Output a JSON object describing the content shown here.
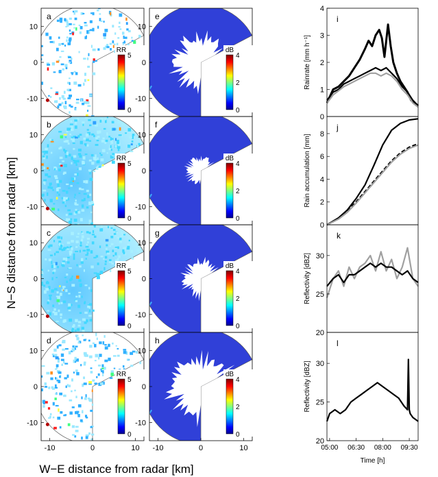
{
  "figure": {
    "shared_xlabel": "W−E distance from radar [km]",
    "shared_ylabel": "N−S distance from radar [km]",
    "map_ticks": [
      "-10",
      "0",
      "10"
    ]
  },
  "chart_data": [
    {
      "type": "heatmap",
      "panel": "a",
      "colorbar": {
        "title": "RR",
        "ticks": [
          "0",
          "5"
        ],
        "range": [
          0,
          5
        ]
      },
      "xlim": [
        -12,
        12
      ],
      "ylim": [
        -15,
        15
      ],
      "fill": "sparse"
    },
    {
      "type": "heatmap",
      "panel": "b",
      "colorbar": {
        "title": "RR",
        "ticks": [
          "0",
          "5"
        ],
        "range": [
          0,
          5
        ]
      },
      "xlim": [
        -12,
        12
      ],
      "ylim": [
        -15,
        15
      ],
      "fill": "full"
    },
    {
      "type": "heatmap",
      "panel": "c",
      "colorbar": {
        "title": "RR",
        "ticks": [
          "0",
          "5"
        ],
        "range": [
          0,
          5
        ]
      },
      "xlim": [
        -12,
        12
      ],
      "ylim": [
        -15,
        15
      ],
      "fill": "full"
    },
    {
      "type": "heatmap",
      "panel": "d",
      "colorbar": {
        "title": "RR",
        "ticks": [
          "0",
          "5"
        ],
        "range": [
          0,
          5
        ]
      },
      "xlim": [
        -12,
        12
      ],
      "ylim": [
        -15,
        15
      ],
      "fill": "sparse"
    },
    {
      "type": "heatmap",
      "panel": "e",
      "colorbar": {
        "title": "dB",
        "ticks": [
          "0",
          "2",
          "4"
        ],
        "range": [
          0,
          4
        ]
      },
      "xlim": [
        -12,
        12
      ],
      "ylim": [
        -15,
        15
      ],
      "blank_radius_km": 7
    },
    {
      "type": "heatmap",
      "panel": "f",
      "colorbar": {
        "title": "dB",
        "ticks": [
          "0",
          "2",
          "4"
        ],
        "range": [
          0,
          4
        ]
      },
      "xlim": [
        -12,
        12
      ],
      "ylim": [
        -15,
        15
      ],
      "blank_radius_km": 3.5
    },
    {
      "type": "heatmap",
      "panel": "g",
      "colorbar": {
        "title": "dB",
        "ticks": [
          "0",
          "2",
          "4"
        ],
        "range": [
          0,
          4
        ]
      },
      "xlim": [
        -12,
        12
      ],
      "ylim": [
        -15,
        15
      ],
      "blank_radius_km": 4.5
    },
    {
      "type": "heatmap",
      "panel": "h",
      "colorbar": {
        "title": "dB",
        "ticks": [
          "0",
          "2",
          "4"
        ],
        "range": [
          0,
          4
        ]
      },
      "xlim": [
        -12,
        12
      ],
      "ylim": [
        -15,
        15
      ],
      "blank_radius_km": 8
    },
    {
      "type": "line",
      "panel": "i",
      "ylabel": "Rainrate [mm h⁻¹]",
      "ylim": [
        0,
        4
      ],
      "yticks": [
        "0",
        "1",
        "2",
        "3",
        "4"
      ],
      "xlim": [
        4.85,
        10.0
      ],
      "series": [
        {
          "color": "#000000",
          "x": [
            4.85,
            5.2,
            5.5,
            5.8,
            6.1,
            6.4,
            6.7,
            7.0,
            7.2,
            7.4,
            7.6,
            7.8,
            7.95,
            8.1,
            8.3,
            8.45,
            8.6,
            8.8,
            9.0,
            9.2,
            9.4,
            9.6,
            9.8,
            10.0
          ],
          "y": [
            0.5,
            1.0,
            1.1,
            1.3,
            1.5,
            1.8,
            2.1,
            2.5,
            2.8,
            2.6,
            3.0,
            3.2,
            2.9,
            2.2,
            3.4,
            2.6,
            2.0,
            1.6,
            1.3,
            1.1,
            0.9,
            0.6,
            0.5,
            0.4
          ]
        },
        {
          "color": "#000000",
          "x": [
            4.85,
            5.2,
            5.5,
            5.8,
            6.1,
            6.4,
            6.7,
            7.0,
            7.3,
            7.6,
            7.9,
            8.2,
            8.5,
            8.8,
            9.1,
            9.4,
            9.7,
            10.0
          ],
          "y": [
            0.6,
            0.9,
            1.0,
            1.2,
            1.3,
            1.4,
            1.5,
            1.6,
            1.7,
            1.8,
            1.7,
            1.8,
            1.6,
            1.4,
            1.1,
            0.9,
            0.6,
            0.4
          ]
        },
        {
          "color": "#a0a0a0",
          "x": [
            4.85,
            5.2,
            5.5,
            5.8,
            6.1,
            6.4,
            6.7,
            7.0,
            7.3,
            7.6,
            7.9,
            8.2,
            8.5,
            8.8,
            9.1,
            9.4,
            9.7,
            10.0
          ],
          "y": [
            0.5,
            0.8,
            0.95,
            1.1,
            1.2,
            1.3,
            1.4,
            1.5,
            1.6,
            1.6,
            1.5,
            1.6,
            1.5,
            1.3,
            1.0,
            0.8,
            0.5,
            0.35
          ]
        }
      ]
    },
    {
      "type": "line",
      "panel": "j",
      "ylabel": "Rain accumulation [mm]",
      "ylim": [
        0,
        9.5
      ],
      "yticks": [
        "0",
        "2",
        "4",
        "6",
        "8"
      ],
      "xlim": [
        4.85,
        10.0
      ],
      "series": [
        {
          "color": "#000000",
          "x": [
            4.85,
            5.5,
            6.0,
            6.5,
            7.0,
            7.5,
            8.0,
            8.5,
            9.0,
            9.5,
            10.0
          ],
          "y": [
            0,
            0.6,
            1.3,
            2.3,
            3.5,
            5.2,
            7.0,
            8.3,
            8.9,
            9.2,
            9.3
          ]
        },
        {
          "color": "#000000",
          "x": [
            4.85,
            5.5,
            6.0,
            6.5,
            7.0,
            7.5,
            8.0,
            8.5,
            9.0,
            9.5,
            10.0
          ],
          "y": [
            0,
            0.55,
            1.2,
            2.0,
            2.9,
            3.8,
            4.7,
            5.6,
            6.3,
            6.8,
            7.1
          ]
        },
        {
          "color": "#a0a0a0",
          "x": [
            4.85,
            5.5,
            6.0,
            6.5,
            7.0,
            7.5,
            8.0,
            8.5,
            9.0,
            9.5,
            10.0
          ],
          "y": [
            0,
            0.5,
            1.1,
            1.9,
            2.8,
            3.7,
            4.6,
            5.5,
            6.2,
            6.7,
            7.0
          ]
        }
      ]
    },
    {
      "type": "line",
      "panel": "k",
      "ylabel": "Reflectivity [dBZ]",
      "ylim": [
        20,
        34
      ],
      "yticks": [
        "20",
        "25",
        "30"
      ],
      "xlim": [
        4.85,
        10.0
      ],
      "series": [
        {
          "color": "#a0a0a0",
          "x": [
            4.85,
            5.2,
            5.5,
            5.8,
            6.1,
            6.4,
            6.7,
            7.0,
            7.3,
            7.6,
            7.9,
            8.2,
            8.5,
            8.8,
            9.1,
            9.4,
            9.7,
            10.0
          ],
          "y": [
            24.5,
            27.0,
            28.0,
            26.0,
            28.5,
            27.0,
            28.5,
            29.0,
            30.0,
            28.0,
            30.5,
            28.0,
            29.5,
            27.0,
            28.5,
            31.0,
            27.0,
            26.0
          ]
        },
        {
          "color": "#000000",
          "x": [
            4.85,
            5.2,
            5.5,
            5.8,
            6.1,
            6.4,
            6.7,
            7.0,
            7.3,
            7.6,
            7.9,
            8.2,
            8.5,
            8.8,
            9.1,
            9.4,
            9.7,
            10.0
          ],
          "y": [
            26.0,
            27.0,
            27.5,
            26.5,
            27.5,
            27.5,
            28.0,
            28.5,
            29.0,
            28.5,
            29.0,
            28.5,
            28.5,
            28.0,
            27.5,
            28.0,
            27.0,
            26.5
          ]
        }
      ]
    },
    {
      "type": "line",
      "panel": "l",
      "ylabel": "Reflectivity [dBZ]",
      "xlabel": "Time [h]",
      "ylim": [
        20,
        34
      ],
      "yticks": [
        "20",
        "25",
        "30"
      ],
      "xlim": [
        4.85,
        10.0
      ],
      "xticks": [
        "05:00",
        "06:30",
        "08:00",
        "09:30"
      ],
      "xtick_values": [
        5.0,
        6.5,
        8.0,
        9.5
      ],
      "series": [
        {
          "color": "#000000",
          "x": [
            4.85,
            5.0,
            5.3,
            5.6,
            5.9,
            6.2,
            6.5,
            6.8,
            7.1,
            7.4,
            7.7,
            8.0,
            8.3,
            8.6,
            8.9,
            9.2,
            9.4,
            9.45,
            9.5,
            9.55,
            9.7,
            10.0
          ],
          "y": [
            22.5,
            23.5,
            24.0,
            23.5,
            24.0,
            25.0,
            25.5,
            26.0,
            26.5,
            27.0,
            27.5,
            27.0,
            26.5,
            26.0,
            25.5,
            24.5,
            24.0,
            30.5,
            24.0,
            23.5,
            23.0,
            22.5
          ]
        }
      ]
    }
  ],
  "panel_letters": [
    "a",
    "b",
    "c",
    "d",
    "e",
    "f",
    "g",
    "h",
    "i",
    "j",
    "k",
    "l"
  ],
  "colors": {
    "dB_fill": "#3040d8",
    "blank": "#ffffff",
    "axis": "#000000",
    "grey_series": "#a0a0a0"
  }
}
